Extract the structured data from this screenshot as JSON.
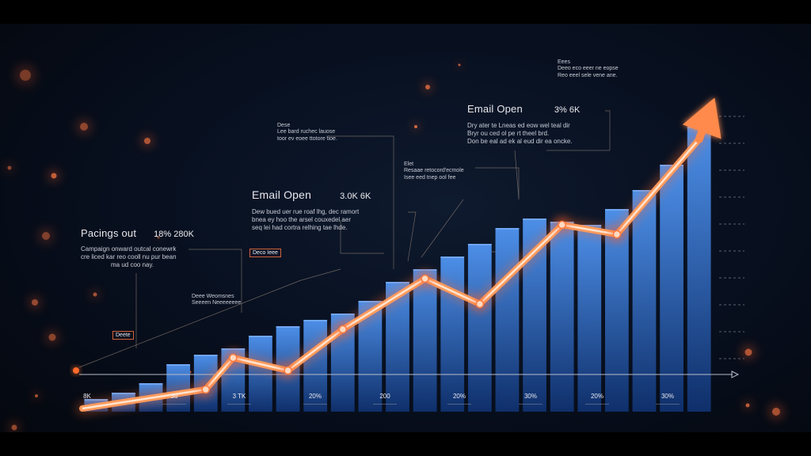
{
  "chart_data": {
    "type": "bar",
    "title": "",
    "xlabel": "",
    "ylabel": "",
    "ylim": [
      0,
      100
    ],
    "series": [
      {
        "values": [
          4,
          6,
          9,
          15,
          18,
          20,
          24,
          27,
          29,
          31,
          35,
          41,
          45,
          49,
          53,
          58,
          61,
          60,
          59,
          64,
          70,
          78,
          90
        ]
      }
    ],
    "trend_line": [
      {
        "i": 0,
        "v": 0.5
      },
      {
        "i": 4,
        "v": 7
      },
      {
        "i": 5,
        "v": 17
      },
      {
        "i": 7,
        "v": 13
      },
      {
        "i": 9,
        "v": 26
      },
      {
        "i": 12,
        "v": 42
      },
      {
        "i": 14,
        "v": 34
      },
      {
        "i": 17,
        "v": 59
      },
      {
        "i": 19,
        "v": 56
      },
      {
        "i": 22,
        "v": 86
      }
    ],
    "trend_markers": [
      4,
      5,
      7,
      9,
      12,
      14,
      17,
      19
    ],
    "grid": false,
    "legend": "none",
    "colors": {
      "bar": "#2f6fd0",
      "bar_light": "#4d8fe8",
      "trend": "#ff9a5c",
      "trend_core": "#ffe4cf",
      "axis": "#b8bccb",
      "marker": "#ffd9c2"
    }
  },
  "x_ticks": [
    {
      "label": "8K",
      "sub": ""
    },
    {
      "label": "3o",
      "sub": "—————"
    },
    {
      "label": "3 TK",
      "sub": "—————"
    },
    {
      "label": "20%",
      "sub": "—————"
    },
    {
      "label": "200",
      "sub": "—————"
    },
    {
      "label": "20%",
      "sub": "—————"
    },
    {
      "label": "30%",
      "sub": "—————"
    },
    {
      "label": "20%",
      "sub": "—————"
    },
    {
      "label": "30%",
      "sub": "—————"
    }
  ],
  "annotations": {
    "left": {
      "title": "Pacings out",
      "value": "18% 280K",
      "text": [
        "Campaign onward outcal conewrk",
        "cre liced kar reo cooll nu pur bean",
        "ma ud coo nay."
      ]
    },
    "mid": {
      "title": "Email Open",
      "value": "3.0K 6K",
      "text": [
        "Dew bued uer rue roaf lhg, dec ramort",
        "bnea ey hoo the arsel couxedel aer",
        "seq lei had cortra relhing tae lhde."
      ]
    },
    "right": {
      "title": "Email Open",
      "value": "3% 6K",
      "text": [
        "Dry ater te Lneas ed eow wel teal dir",
        "Bryr ou ced ol pe rt theel brd.",
        "Don be eal ad ek al eud dir ea oncke."
      ]
    },
    "top_small": [
      "Lee bard ruchec lauose",
      "toor ev eoee ttotore tioe."
    ],
    "top_small_head": "Dese",
    "mid_small": [
      "Resaae retocord'ecmole",
      "Isee eed tnep ool fee"
    ],
    "mid_small_head": "Elet",
    "far_right_small": [
      "Deeo eco eeer ne eopse",
      "Reo eeel sele vene ane."
    ],
    "far_right_small_head": "Eees",
    "low_small": [
      "Deee Weomsnes",
      "Seeeen Neeeeeeee"
    ],
    "tag_low": "Deete",
    "tag_mid": "Deco Ieee"
  }
}
